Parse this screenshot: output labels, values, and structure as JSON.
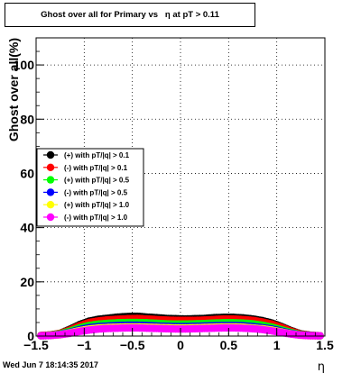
{
  "title": "Ghost over all for Primary vs   η at pT > 0.11",
  "footer": "Wed Jun  7 18:14:35 2017",
  "chart_data": {
    "type": "scatter",
    "xlabel": "η",
    "ylabel": "Ghost over all(%)",
    "xlim": [
      -1.5,
      1.5
    ],
    "ylim": [
      0,
      110
    ],
    "xticks": [
      -1.5,
      -1,
      -0.5,
      0,
      0.5,
      1,
      1.5
    ],
    "xticklabels": [
      "−1.5",
      "−1",
      "−0.5",
      "0",
      "0.5",
      "1",
      "1.5"
    ],
    "yticks": [
      0,
      20,
      40,
      60,
      80,
      100
    ],
    "grid": true,
    "legend_position": "left-middle",
    "x": [
      -1.45,
      -1.35,
      -1.25,
      -1.15,
      -1.05,
      -0.95,
      -0.85,
      -0.75,
      -0.65,
      -0.55,
      -0.45,
      -0.35,
      -0.25,
      -0.15,
      -0.05,
      0.05,
      0.15,
      0.25,
      0.35,
      0.45,
      0.55,
      0.65,
      0.75,
      0.85,
      0.95,
      1.05,
      1.15,
      1.25,
      1.35,
      1.45
    ],
    "series": [
      {
        "name": "(+) with pT/|q| > 0.1",
        "color": "#000000",
        "values": [
          0.2,
          0.4,
          1.0,
          2.5,
          4.2,
          5.5,
          6.2,
          6.6,
          7.0,
          7.2,
          7.3,
          7.0,
          6.8,
          6.5,
          6.4,
          6.3,
          6.4,
          6.5,
          6.8,
          6.9,
          6.9,
          6.7,
          6.3,
          5.7,
          4.8,
          3.5,
          2.0,
          0.8,
          0.3,
          0.1
        ]
      },
      {
        "name": "(-) with pT/|q| > 0.1",
        "color": "#ff0000",
        "values": [
          0.2,
          0.4,
          1.0,
          2.2,
          3.8,
          5.0,
          5.6,
          6.0,
          6.2,
          6.4,
          6.5,
          6.3,
          6.1,
          5.9,
          5.8,
          5.8,
          5.8,
          5.9,
          6.1,
          6.3,
          6.3,
          6.1,
          5.8,
          5.2,
          4.4,
          3.2,
          1.8,
          0.7,
          0.3,
          0.1
        ]
      },
      {
        "name": "(+) with pT/|q| > 0.5",
        "color": "#00ff00",
        "values": [
          0.1,
          0.3,
          0.8,
          1.8,
          3.0,
          3.9,
          4.4,
          4.7,
          4.9,
          5.0,
          5.0,
          4.9,
          4.7,
          4.5,
          4.4,
          4.4,
          4.5,
          4.6,
          4.8,
          4.9,
          4.9,
          4.8,
          4.5,
          4.0,
          3.3,
          2.3,
          1.3,
          0.5,
          0.2,
          0.1
        ]
      },
      {
        "name": "(-) with pT/|q| > 0.5",
        "color": "#0000ff",
        "values": [
          0.1,
          0.2,
          0.6,
          1.4,
          2.4,
          3.1,
          3.5,
          3.7,
          3.9,
          4.0,
          4.0,
          3.9,
          3.7,
          3.6,
          3.5,
          3.5,
          3.6,
          3.7,
          3.8,
          3.9,
          3.9,
          3.8,
          3.5,
          3.1,
          2.6,
          1.8,
          1.0,
          0.4,
          0.2,
          0.1
        ]
      },
      {
        "name": "(+) with pT/|q| > 1.0",
        "color": "#ffff00",
        "values": [
          0.1,
          0.2,
          0.5,
          1.2,
          2.0,
          2.6,
          3.0,
          3.2,
          3.3,
          3.4,
          3.4,
          3.3,
          3.2,
          3.1,
          3.0,
          3.0,
          3.1,
          3.2,
          3.3,
          3.4,
          3.4,
          3.3,
          3.0,
          2.7,
          2.2,
          1.5,
          0.8,
          0.3,
          0.1,
          0.1
        ]
      },
      {
        "name": "(-) with pT/|q| > 1.0",
        "color": "#ff00ff",
        "values": [
          0.1,
          0.2,
          0.5,
          1.0,
          1.7,
          2.2,
          2.6,
          2.8,
          2.9,
          3.0,
          3.0,
          2.9,
          2.8,
          2.7,
          2.6,
          2.6,
          2.7,
          2.8,
          2.9,
          3.0,
          3.0,
          2.9,
          2.7,
          2.4,
          1.9,
          1.3,
          0.7,
          0.3,
          0.1,
          0.1
        ]
      }
    ]
  }
}
